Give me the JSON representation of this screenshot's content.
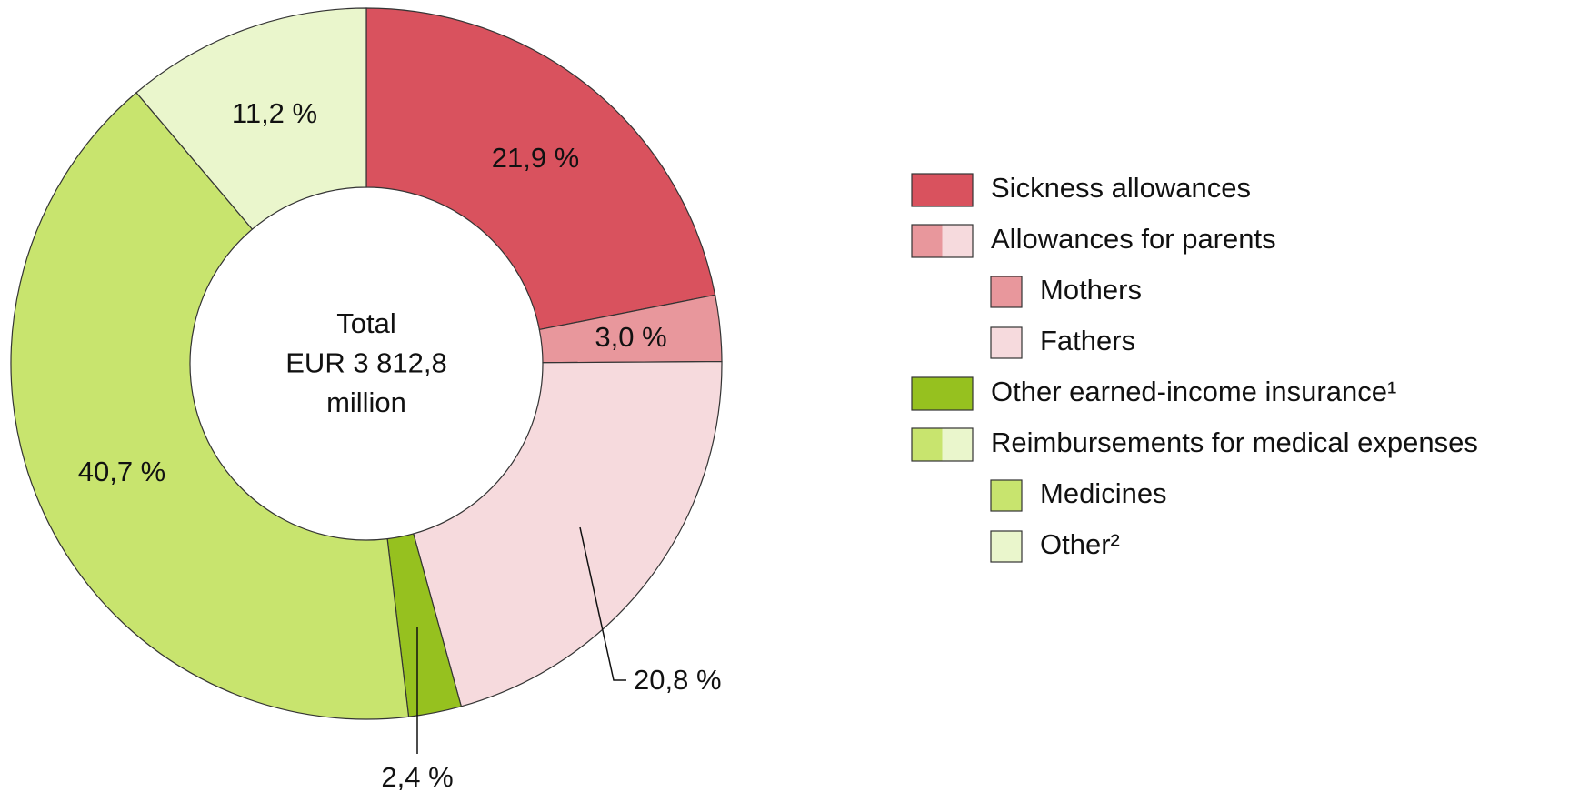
{
  "chart_data": {
    "type": "donut",
    "center_label": [
      "Total",
      "EUR 3 812,8",
      "million"
    ],
    "groups": [
      {
        "name": "Sickness allowances",
        "color": "#d9525e",
        "value": 21.9,
        "value_label": "21,9 %"
      },
      {
        "name": "Allowances for parents",
        "parts": [
          {
            "name": "Mothers",
            "color": "#e8979c",
            "value": 3.0,
            "value_label": "3,0 %"
          },
          {
            "name": "Fathers",
            "color": "#f6dadd",
            "value": 20.8,
            "value_label": "20,8 %"
          }
        ]
      },
      {
        "name": "Other earned-income insurance¹",
        "color": "#96c11f",
        "value": 2.4,
        "value_label": "2,4 %"
      },
      {
        "name": "Reimbursements for medical expenses",
        "parts": [
          {
            "name": "Medicines",
            "color": "#c8e46e",
            "value": 40.7,
            "value_label": "40,7 %"
          },
          {
            "name": "Other²",
            "color": "#eaf6cc",
            "value": 11.2,
            "value_label": "11,2 %"
          }
        ]
      }
    ]
  }
}
